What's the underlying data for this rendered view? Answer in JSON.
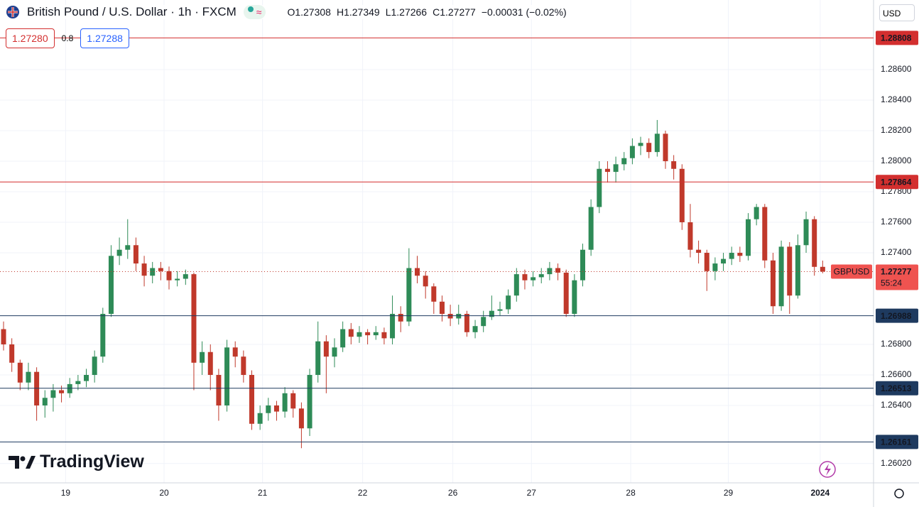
{
  "header": {
    "symbol": "British Pound / U.S. Dollar · 1h · FXCM",
    "ohlc": [
      {
        "label": "O",
        "value": "1.27308"
      },
      {
        "label": "H",
        "value": "1.27349"
      },
      {
        "label": "L",
        "value": "1.27266"
      },
      {
        "label": "C",
        "value": "1.27277"
      }
    ],
    "change": "−0.00031 (−0.02%)",
    "bid": "1.27280",
    "spread": "0.8",
    "ask": "1.27288",
    "currency": "USD",
    "logo": "TradingView"
  },
  "chart_data": {
    "type": "candlestick",
    "symbol_label": "GBPUSD",
    "last_price": 1.27277,
    "countdown": "55:24",
    "up_color": "#2e8b57",
    "down_color": "#c0392b",
    "grid": true,
    "ylim": [
      1.25893,
      1.29056
    ],
    "yticks": [
      {
        "value": 1.286,
        "label": "1.28600"
      },
      {
        "value": 1.284,
        "label": "1.28400"
      },
      {
        "value": 1.282,
        "label": "1.28200"
      },
      {
        "value": 1.28,
        "label": "1.28000"
      },
      {
        "value": 1.278,
        "label": "1.27800"
      },
      {
        "value": 1.276,
        "label": "1.27600"
      },
      {
        "value": 1.274,
        "label": "1.27400"
      },
      {
        "value": 1.268,
        "label": "1.26800"
      },
      {
        "value": 1.266,
        "label": "1.26600"
      },
      {
        "value": 1.264,
        "label": "1.26400"
      },
      {
        "value": 1.2602,
        "label": "1.26020"
      }
    ],
    "xlim": [
      -0.43,
      105.15
    ],
    "xticks": [
      {
        "value": 7.5,
        "label": "19"
      },
      {
        "value": 19.4,
        "label": "20"
      },
      {
        "value": 31.3,
        "label": "21"
      },
      {
        "value": 43.4,
        "label": "22"
      },
      {
        "value": 54.3,
        "label": "26"
      },
      {
        "value": 63.8,
        "label": "27"
      },
      {
        "value": 75.8,
        "label": "28"
      },
      {
        "value": 87.6,
        "label": "29"
      },
      {
        "value": 98.7,
        "label": "2024"
      }
    ],
    "levels": [
      {
        "value": 1.28808,
        "color": "#d32f2f"
      },
      {
        "value": 1.27864,
        "color": "#d32f2f"
      },
      {
        "value": 1.26988,
        "color": "#1e3a5f"
      },
      {
        "value": 1.26513,
        "color": "#1e3a5f"
      },
      {
        "value": 1.26161,
        "color": "#1e3a5f"
      }
    ],
    "ohlc": [
      [
        1.269,
        1.2695,
        1.2676,
        1.268
      ],
      [
        1.268,
        1.2684,
        1.2662,
        1.2668
      ],
      [
        1.2668,
        1.267,
        1.265,
        1.2655
      ],
      [
        1.2655,
        1.2668,
        1.265,
        1.2662
      ],
      [
        1.2662,
        1.2665,
        1.263,
        1.264
      ],
      [
        1.264,
        1.265,
        1.2632,
        1.2645
      ],
      [
        1.2645,
        1.2654,
        1.2636,
        1.265
      ],
      [
        1.265,
        1.2653,
        1.2642,
        1.2648
      ],
      [
        1.2648,
        1.2658,
        1.2645,
        1.2654
      ],
      [
        1.2654,
        1.266,
        1.265,
        1.2656
      ],
      [
        1.2656,
        1.2664,
        1.2652,
        1.266
      ],
      [
        1.266,
        1.2676,
        1.2655,
        1.2672
      ],
      [
        1.2672,
        1.2704,
        1.2668,
        1.27
      ],
      [
        1.27,
        1.2745,
        1.2698,
        1.2738
      ],
      [
        1.2738,
        1.275,
        1.2732,
        1.2742
      ],
      [
        1.2742,
        1.2762,
        1.2736,
        1.2745
      ],
      [
        1.2745,
        1.275,
        1.2728,
        1.2733
      ],
      [
        1.2733,
        1.2738,
        1.2718,
        1.2725
      ],
      [
        1.2725,
        1.2734,
        1.272,
        1.273
      ],
      [
        1.273,
        1.2734,
        1.2722,
        1.2728
      ],
      [
        1.2728,
        1.2731,
        1.2716,
        1.2722
      ],
      [
        1.2722,
        1.2728,
        1.2718,
        1.2723
      ],
      [
        1.2723,
        1.2729,
        1.2719,
        1.2726
      ],
      [
        1.2726,
        1.2727,
        1.265,
        1.2668
      ],
      [
        1.2668,
        1.2682,
        1.266,
        1.2675
      ],
      [
        1.2675,
        1.268,
        1.265,
        1.266
      ],
      [
        1.266,
        1.2664,
        1.263,
        1.264
      ],
      [
        1.264,
        1.2683,
        1.2636,
        1.2678
      ],
      [
        1.2678,
        1.2682,
        1.2665,
        1.2672
      ],
      [
        1.2672,
        1.2676,
        1.2655,
        1.266
      ],
      [
        1.266,
        1.2663,
        1.2624,
        1.2628
      ],
      [
        1.2628,
        1.264,
        1.2624,
        1.2635
      ],
      [
        1.2635,
        1.2645,
        1.263,
        1.264
      ],
      [
        1.264,
        1.2643,
        1.263,
        1.2636
      ],
      [
        1.2636,
        1.2652,
        1.2632,
        1.2648
      ],
      [
        1.2648,
        1.265,
        1.2632,
        1.2638
      ],
      [
        1.2638,
        1.2642,
        1.2612,
        1.2625
      ],
      [
        1.2625,
        1.2664,
        1.262,
        1.266
      ],
      [
        1.266,
        1.2695,
        1.2655,
        1.2682
      ],
      [
        1.2682,
        1.2686,
        1.2648,
        1.2672
      ],
      [
        1.2672,
        1.2684,
        1.2665,
        1.2678
      ],
      [
        1.2678,
        1.2695,
        1.2675,
        1.269
      ],
      [
        1.269,
        1.2694,
        1.268,
        1.2685
      ],
      [
        1.2685,
        1.2692,
        1.2681,
        1.2688
      ],
      [
        1.2688,
        1.269,
        1.268,
        1.2686
      ],
      [
        1.2686,
        1.2692,
        1.2683,
        1.2688
      ],
      [
        1.2688,
        1.2691,
        1.268,
        1.2684
      ],
      [
        1.2684,
        1.2712,
        1.268,
        1.27
      ],
      [
        1.27,
        1.2705,
        1.2688,
        1.2695
      ],
      [
        1.2695,
        1.2743,
        1.2692,
        1.273
      ],
      [
        1.273,
        1.2738,
        1.272,
        1.2725
      ],
      [
        1.2725,
        1.2728,
        1.271,
        1.2718
      ],
      [
        1.2718,
        1.272,
        1.27,
        1.2708
      ],
      [
        1.2708,
        1.2712,
        1.2695,
        1.27
      ],
      [
        1.27,
        1.2706,
        1.2692,
        1.2697
      ],
      [
        1.2697,
        1.2706,
        1.2693,
        1.27
      ],
      [
        1.27,
        1.2702,
        1.2685,
        1.2688
      ],
      [
        1.2688,
        1.2696,
        1.2684,
        1.2692
      ],
      [
        1.2692,
        1.2702,
        1.2688,
        1.2698
      ],
      [
        1.2698,
        1.2712,
        1.2696,
        1.2702
      ],
      [
        1.2702,
        1.2708,
        1.2699,
        1.2703
      ],
      [
        1.2703,
        1.2716,
        1.27,
        1.2712
      ],
      [
        1.2712,
        1.273,
        1.2708,
        1.2726
      ],
      [
        1.2726,
        1.2729,
        1.2716,
        1.2722
      ],
      [
        1.2722,
        1.2728,
        1.2718,
        1.2724
      ],
      [
        1.2724,
        1.273,
        1.272,
        1.2726
      ],
      [
        1.2726,
        1.2734,
        1.2722,
        1.273
      ],
      [
        1.273,
        1.2733,
        1.2722,
        1.2727
      ],
      [
        1.2727,
        1.2729,
        1.2698,
        1.27
      ],
      [
        1.27,
        1.2726,
        1.2698,
        1.2722
      ],
      [
        1.2722,
        1.2746,
        1.2718,
        1.2742
      ],
      [
        1.2742,
        1.2775,
        1.2738,
        1.277
      ],
      [
        1.277,
        1.28,
        1.2766,
        1.2795
      ],
      [
        1.2795,
        1.28,
        1.2786,
        1.2793
      ],
      [
        1.2793,
        1.2803,
        1.2786,
        1.2798
      ],
      [
        1.2798,
        1.2806,
        1.2794,
        1.2802
      ],
      [
        1.2802,
        1.2815,
        1.2798,
        1.281
      ],
      [
        1.281,
        1.2816,
        1.2804,
        1.2812
      ],
      [
        1.2812,
        1.2815,
        1.2802,
        1.2806
      ],
      [
        1.2806,
        1.2827,
        1.2803,
        1.2818
      ],
      [
        1.2818,
        1.282,
        1.2795,
        1.28
      ],
      [
        1.28,
        1.2804,
        1.2788,
        1.2795
      ],
      [
        1.2795,
        1.2798,
        1.2755,
        1.276
      ],
      [
        1.276,
        1.2772,
        1.2737,
        1.2742
      ],
      [
        1.2742,
        1.2748,
        1.2733,
        1.274
      ],
      [
        1.274,
        1.2742,
        1.2715,
        1.2728
      ],
      [
        1.2728,
        1.2737,
        1.2722,
        1.2733
      ],
      [
        1.2733,
        1.274,
        1.2728,
        1.2736
      ],
      [
        1.2736,
        1.2744,
        1.2732,
        1.274
      ],
      [
        1.274,
        1.2744,
        1.2734,
        1.2738
      ],
      [
        1.2738,
        1.2766,
        1.2735,
        1.2762
      ],
      [
        1.2762,
        1.2772,
        1.2758,
        1.277
      ],
      [
        1.277,
        1.2772,
        1.273,
        1.2735
      ],
      [
        1.2735,
        1.274,
        1.27,
        1.2705
      ],
      [
        1.2705,
        1.2748,
        1.2702,
        1.2744
      ],
      [
        1.2744,
        1.2747,
        1.27,
        1.2712
      ],
      [
        1.2712,
        1.2752,
        1.271,
        1.2745
      ],
      [
        1.2745,
        1.2767,
        1.274,
        1.2762
      ],
      [
        1.2762,
        1.2764,
        1.2725,
        1.27308
      ],
      [
        1.27308,
        1.27349,
        1.27266,
        1.27277
      ]
    ]
  }
}
